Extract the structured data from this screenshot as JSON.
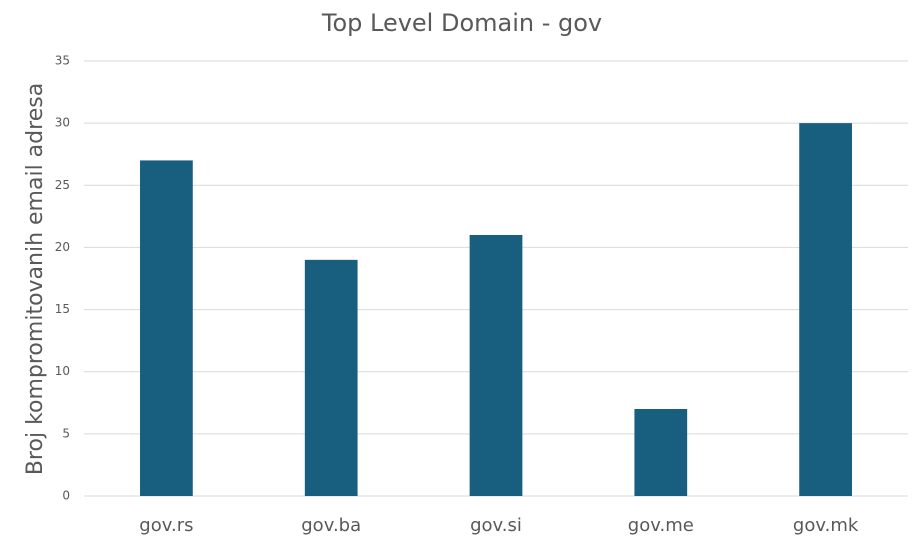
{
  "chart_data": {
    "type": "bar",
    "title": "Top Level Domain - gov",
    "y_label": "Broj kompromitovanih email adresa",
    "categories": [
      "gov.rs",
      "gov.ba",
      "gov.si",
      "gov.me",
      "gov.mk"
    ],
    "values": [
      27,
      19,
      21,
      7,
      30
    ],
    "color": "#175e7f",
    "ylim": [
      0,
      35
    ],
    "yticks": [
      0,
      5,
      10,
      15,
      20,
      25,
      30,
      35
    ],
    "grid": true
  }
}
